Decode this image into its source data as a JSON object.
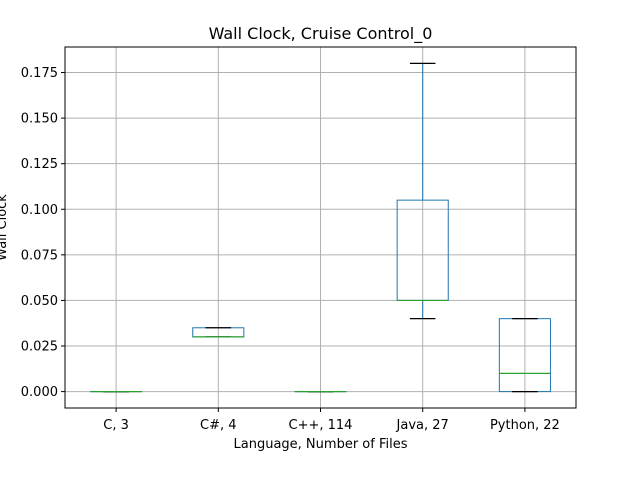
{
  "chart_data": {
    "type": "box",
    "title": "Wall Clock, Cruise Control_0",
    "xlabel": "Language, Number of Files",
    "ylabel": "Wall Clock",
    "categories": [
      "C, 3",
      "C#, 4",
      "C++, 114",
      "Java, 27",
      "Python, 22"
    ],
    "boxes": [
      {
        "whisker_low": 0.0,
        "q1": 0.0,
        "median": 0.0,
        "q3": 0.0,
        "whisker_high": 0.0
      },
      {
        "whisker_low": 0.03,
        "q1": 0.03,
        "median": 0.03,
        "q3": 0.035,
        "whisker_high": 0.035
      },
      {
        "whisker_low": 0.0,
        "q1": 0.0,
        "median": 0.0,
        "q3": 0.0,
        "whisker_high": 0.0
      },
      {
        "whisker_low": 0.04,
        "q1": 0.05,
        "median": 0.05,
        "q3": 0.105,
        "whisker_high": 0.18
      },
      {
        "whisker_low": 0.0,
        "q1": 0.0,
        "median": 0.01,
        "q3": 0.04,
        "whisker_high": 0.04
      }
    ],
    "ylim": [
      -0.009,
      0.189
    ],
    "yticks": [
      0.0,
      0.025,
      0.05,
      0.075,
      0.1,
      0.125,
      0.15,
      0.175
    ],
    "ytick_labels": [
      "0.000",
      "0.025",
      "0.050",
      "0.075",
      "0.100",
      "0.125",
      "0.150",
      "0.175"
    ],
    "grid": true,
    "colors": {
      "box": "#1f77b4",
      "median": "#2ca02c",
      "whisker_cap": "#000000",
      "grid": "#b0b0b0",
      "axes": "#000000"
    }
  }
}
